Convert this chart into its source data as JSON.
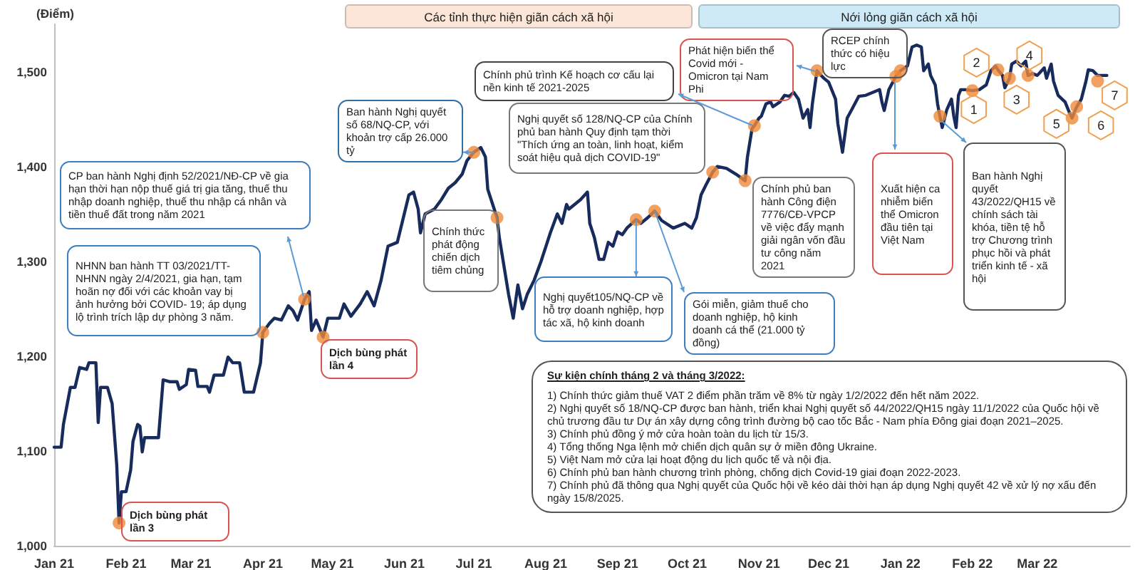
{
  "chart_data": {
    "type": "line",
    "ylabel": "(Điểm)",
    "xlim": [
      "2021-01-01",
      "2022-04-10"
    ],
    "ylim": [
      1000,
      1550
    ],
    "xticks": [
      {
        "value": "2021-01-01",
        "label": "Jan 21"
      },
      {
        "value": "2021-02-01",
        "label": "Feb 21"
      },
      {
        "value": "2021-03-01",
        "label": "Mar 21"
      },
      {
        "value": "2021-04-01",
        "label": "Apr 21"
      },
      {
        "value": "2021-05-01",
        "label": "May 21"
      },
      {
        "value": "2021-06-01",
        "label": "Jun 21"
      },
      {
        "value": "2021-07-01",
        "label": "Jul 21"
      },
      {
        "value": "2021-08-01",
        "label": "Aug 21"
      },
      {
        "value": "2021-09-01",
        "label": "Sep 21"
      },
      {
        "value": "2021-10-01",
        "label": "Oct 21"
      },
      {
        "value": "2021-11-01",
        "label": "Nov 21"
      },
      {
        "value": "2021-12-01",
        "label": "Dec 21"
      },
      {
        "value": "2022-01-01",
        "label": "Jan 22"
      },
      {
        "value": "2022-02-01",
        "label": "Feb 22"
      },
      {
        "value": "2022-03-01",
        "label": "Mar 22"
      }
    ],
    "yticks": [
      {
        "value": 1000,
        "label": "1,000"
      },
      {
        "value": 1100,
        "label": "1,100"
      },
      {
        "value": 1200,
        "label": "1,200"
      },
      {
        "value": 1300,
        "label": "1,300"
      },
      {
        "value": 1400,
        "label": "1,400"
      },
      {
        "value": 1500,
        "label": "1,500"
      }
    ],
    "marker": "circle",
    "line_style": "solid",
    "series": [
      {
        "marker": "none",
        "color": "#172b5c",
        "x": [
          "2021-01-01",
          "2021-01-04",
          "2021-01-05",
          "2021-01-08",
          "2021-01-10",
          "2021-01-12",
          "2021-01-15",
          "2021-01-16",
          "2021-01-19",
          "2021-01-20",
          "2021-01-21",
          "2021-01-24",
          "2021-01-26",
          "2021-01-28",
          "2021-01-29",
          "2021-01-30",
          "2021-02-01",
          "2021-02-03",
          "2021-02-04",
          "2021-02-06",
          "2021-02-07",
          "2021-02-08",
          "2021-02-09",
          "2021-02-15",
          "2021-02-17",
          "2021-02-20",
          "2021-02-23",
          "2021-02-24",
          "2021-02-27",
          "2021-02-28",
          "2021-03-03",
          "2021-03-04",
          "2021-03-08",
          "2021-03-09",
          "2021-03-11",
          "2021-03-15",
          "2021-03-17",
          "2021-03-19",
          "2021-03-22",
          "2021-03-24",
          "2021-03-28",
          "2021-03-31",
          "2021-04-01",
          "2021-04-04",
          "2021-04-06",
          "2021-04-09",
          "2021-04-12",
          "2021-04-14",
          "2021-04-16",
          "2021-04-19",
          "2021-04-21",
          "2021-04-22",
          "2021-04-24",
          "2021-04-27",
          "2021-04-29",
          "2021-05-04",
          "2021-05-06",
          "2021-05-09",
          "2021-05-13",
          "2021-05-16",
          "2021-05-19",
          "2021-05-22",
          "2021-05-25",
          "2021-05-29",
          "2021-05-31",
          "2021-06-03",
          "2021-06-05",
          "2021-06-07",
          "2021-06-08",
          "2021-06-10",
          "2021-06-14",
          "2021-06-17",
          "2021-06-20",
          "2021-06-23",
          "2021-06-26",
          "2021-06-28",
          "2021-07-01",
          "2021-07-04",
          "2021-07-06",
          "2021-07-07",
          "2021-07-11",
          "2021-07-12",
          "2021-07-14",
          "2021-07-16",
          "2021-07-18",
          "2021-07-20",
          "2021-07-22",
          "2021-07-24",
          "2021-07-27",
          "2021-07-30",
          "2021-08-03",
          "2021-08-06",
          "2021-08-08",
          "2021-08-10",
          "2021-08-11",
          "2021-08-16",
          "2021-08-19",
          "2021-08-20",
          "2021-08-22",
          "2021-08-24",
          "2021-08-26",
          "2021-08-28",
          "2021-08-30",
          "2021-09-01",
          "2021-09-03",
          "2021-09-05",
          "2021-09-09",
          "2021-09-11",
          "2021-09-14",
          "2021-09-17",
          "2021-09-20",
          "2021-09-25",
          "2021-09-30",
          "2021-10-03",
          "2021-10-05",
          "2021-10-07",
          "2021-10-09",
          "2021-10-12",
          "2021-10-14",
          "2021-10-18",
          "2021-10-22",
          "2021-10-26",
          "2021-10-27",
          "2021-10-29",
          "2021-10-30",
          "2021-11-01",
          "2021-11-02",
          "2021-11-04",
          "2021-11-06",
          "2021-11-07",
          "2021-11-10",
          "2021-11-12",
          "2021-11-14",
          "2021-11-16",
          "2021-11-18",
          "2021-11-20",
          "2021-11-22",
          "2021-11-23",
          "2021-11-24",
          "2021-11-26",
          "2021-11-27",
          "2021-11-29",
          "2021-12-01",
          "2021-12-04",
          "2021-12-05",
          "2021-12-07",
          "2021-12-09",
          "2021-12-11",
          "2021-12-14",
          "2021-12-17",
          "2021-12-20",
          "2021-12-23",
          "2021-12-24",
          "2021-12-25",
          "2021-12-27",
          "2021-12-30",
          "2022-01-01",
          "2022-01-04",
          "2022-01-06",
          "2022-01-08",
          "2022-01-10",
          "2022-01-11",
          "2022-01-13",
          "2022-01-14",
          "2022-01-16",
          "2022-01-17",
          "2022-01-18",
          "2022-01-19",
          "2022-01-21",
          "2022-01-23",
          "2022-01-24",
          "2022-01-25",
          "2022-01-26",
          "2022-01-27",
          "2022-01-29",
          "2022-02-01",
          "2022-02-04",
          "2022-02-07",
          "2022-02-09",
          "2022-02-11",
          "2022-02-12",
          "2022-02-14",
          "2022-02-15",
          "2022-02-17",
          "2022-02-18",
          "2022-02-20",
          "2022-02-22",
          "2022-02-24",
          "2022-02-25",
          "2022-02-27",
          "2022-03-01",
          "2022-03-04",
          "2022-03-05",
          "2022-03-07",
          "2022-03-08",
          "2022-03-10",
          "2022-03-13",
          "2022-03-15",
          "2022-03-16",
          "2022-03-18",
          "2022-03-20",
          "2022-03-22",
          "2022-03-23",
          "2022-03-25",
          "2022-03-27",
          "2022-03-31"
        ],
        "values": [
          1104,
          1104,
          1128,
          1167,
          1167,
          1188,
          1186,
          1193,
          1193,
          1130,
          1167,
          1167,
          1150,
          1085,
          1024,
          1057,
          1057,
          1080,
          1110,
          1128,
          1126,
          1099,
          1114,
          1114,
          1175,
          1173,
          1173,
          1165,
          1170,
          1186,
          1185,
          1168,
          1168,
          1162,
          1180,
          1180,
          1199,
          1193,
          1193,
          1162,
          1162,
          1193,
          1225,
          1235,
          1240,
          1238,
          1253,
          1248,
          1238,
          1260,
          1268,
          1227,
          1238,
          1220,
          1240,
          1240,
          1255,
          1242,
          1255,
          1268,
          1253,
          1280,
          1316,
          1320,
          1340,
          1370,
          1373,
          1355,
          1330,
          1350,
          1355,
          1365,
          1377,
          1383,
          1392,
          1406,
          1415,
          1420,
          1410,
          1376,
          1346,
          1325,
          1295,
          1265,
          1240,
          1275,
          1250,
          1265,
          1280,
          1300,
          1330,
          1350,
          1340,
          1360,
          1355,
          1365,
          1373,
          1340,
          1325,
          1302,
          1302,
          1320,
          1316,
          1331,
          1328,
          1335,
          1344,
          1340,
          1346,
          1353,
          1343,
          1335,
          1340,
          1335,
          1346,
          1370,
          1380,
          1394,
          1400,
          1398,
          1392,
          1385,
          1410,
          1440,
          1443,
          1451,
          1453,
          1466,
          1468,
          1463,
          1468,
          1475,
          1474,
          1478,
          1471,
          1451,
          1460,
          1441,
          1466,
          1501,
          1498,
          1493,
          1489,
          1471,
          1445,
          1415,
          1451,
          1460,
          1474,
          1475,
          1478,
          1481,
          1468,
          1459,
          1481,
          1495,
          1501,
          1506,
          1526,
          1528,
          1526,
          1501,
          1508,
          1496,
          1486,
          1466,
          1453,
          1441,
          1460,
          1471,
          1453,
          1441,
          1475,
          1481,
          1481,
          1480,
          1481,
          1486,
          1501,
          1506,
          1502,
          1496,
          1483,
          1493,
          1508,
          1511,
          1506,
          1511,
          1496,
          1498,
          1496,
          1504,
          1493,
          1508,
          1490,
          1475,
          1468,
          1456,
          1451,
          1463,
          1471,
          1490,
          1502,
          1501,
          1496,
          1496
        ]
      },
      {
        "type": "scatter",
        "color": "#f08a3a",
        "x": [
          "2021-01-29",
          "2021-04-01",
          "2021-04-19",
          "2021-04-27",
          "2021-07-01",
          "2021-07-11",
          "2021-09-09",
          "2021-09-17",
          "2021-10-12",
          "2021-10-26",
          "2021-10-30",
          "2021-11-26",
          "2021-12-30",
          "2022-01-01",
          "2022-01-18",
          "2022-02-01",
          "2022-02-12",
          "2022-02-17",
          "2022-02-25",
          "2022-03-16",
          "2022-03-18",
          "2022-03-27"
        ],
        "values": [
          1024,
          1225,
          1260,
          1220,
          1415,
          1346,
          1344,
          1353,
          1394,
          1385,
          1443,
          1501,
          1495,
          1501,
          1453,
          1480,
          1502,
          1493,
          1496,
          1451,
          1463,
          1490
        ]
      }
    ],
    "annotations": [
      {
        "text": "NHNN ban hành TT 03/2021/TT-NHNN ngày 2/4/2021, gia hạn, tạm hoãn nợ đối với các khoản vay bị ảnh hưởng bởi COVID- 19; áp dụng lộ trình trích lập dự phòng 3 năm.",
        "x": "2021-04-01",
        "y": 1225
      },
      "CP ban hành Nghị định 52/2021/NĐ-CP về gia hạn thời hạn nộp thuế giá trị gia tăng, thuế thu nhập doanh nghiệp, thuế thu nhập cá nhân và tiền thuế đất trong năm 2021",
      {
        "text": "Dịch bùng phát lần 3",
        "x": "2021-01-29",
        "y": 1024
      },
      {
        "text": "Dịch bùng phát lần 4",
        "x": "2021-04-27",
        "y": 1220
      },
      {
        "text": "Ban hành Nghị quyết số 68/NQ-CP, với khoản trợ cấp 26.000 tỷ",
        "x": "2021-07-01",
        "y": 1415
      },
      {
        "text": "Chính thức phát động chiến dịch tiêm chủng",
        "x": "2021-07-11",
        "y": 1346
      },
      "Chính phủ trình Kế hoạch cơ cấu lại nền kinh tế 2021-2025",
      {
        "text": "Nghị quyết số 128/NQ-CP của Chính phủ ban hành Quy định tạm thời \"Thích ứng an toàn, linh hoạt, kiểm soát hiệu quả dịch COVID-19\"",
        "x": "2021-10-12",
        "y": 1394
      },
      {
        "text": "Chính phủ ban hành Công điện 7776/CĐ-VPCP về việc đẩy mạnh giải ngân vốn đầu tư công năm 2021",
        "x": "2021-10-26",
        "y": 1385
      },
      "Phát hiện biến thể Covid mới - Omicron tại Nam Phi",
      {
        "text": "RCEP chính thức có hiệu lực",
        "x": "2022-01-01",
        "y": 1501
      },
      "Xuất hiện ca nhiễm biến thể Omicron đầu tiên tại Việt Nam",
      "Ban hành Nghị quyết 43/2022/QH15 về chính sách tài khóa, tiền tệ hỗ trợ Chương trình phục hồi và phát triển kinh tế - xã hội",
      {
        "text": "Nghị quyết105/NQ-CP về hỗ trợ doanh nghiệp, hợp tác xã, hộ kinh doanh",
        "x": "2021-09-09",
        "y": 1344
      },
      {
        "text": "Gói miễn, giảm thuế cho doanh nghiệp, hộ kinh doanh cá thể (21.000 tỷ đồng)",
        "x": "2021-09-17",
        "y": 1353
      },
      "Sự kiện chính tháng 2 và tháng 3/2022:",
      "1) Chính thức giảm thuế VAT 2 điểm phần trăm về 8% từ ngày 1/2/2022 đến hết năm 2022.",
      "2) Nghị quyết số 18/NQ-CP được ban hành, triển khai Nghị quyết số 44/2022/QH15 ngày 11/1/2022 của Quốc hội về chủ trương đầu tư Dự án xây dựng công trình đường bộ cao tốc Bắc - Nam phía Đông giai đoạn 2021–2025.",
      "3) Chính phủ đồng ý mở cửa hoàn toàn du lịch từ 15/3.",
      "4) Tổng thống Nga lệnh mở chiến dịch quân sự ở miền đông Ukraine.",
      "5) Việt Nam mở cửa lại hoạt động du lịch quốc tế và nội địa.",
      "6) Chính phủ ban hành chương trình phòng, chống dịch Covid-19 giai đoạn 2022-2023.",
      "7) Chính phủ đã thông qua Nghị quyết của Quốc hội về kéo dài thời hạn áp dụng Nghị quyết 42 về xử lý nợ xấu đến ngày 15/8/2025.",
      {
        "text": "1",
        "x": "2022-02-01",
        "y": 1480
      },
      {
        "text": "2",
        "x": "2022-02-12",
        "y": 1502
      },
      {
        "text": "3",
        "x": "2022-02-17",
        "y": 1493
      },
      {
        "text": "4",
        "x": "2022-02-25",
        "y": 1496
      },
      {
        "text": "5",
        "x": "2022-03-16",
        "y": 1451
      },
      {
        "text": "6",
        "x": "2022-03-18",
        "y": 1463
      },
      {
        "text": "7",
        "x": "2022-03-27",
        "y": 1490
      },
      "Các tỉnh thực hiện giãn cách xã hội",
      "Nới lỏng giãn cách xã hội"
    ]
  }
}
